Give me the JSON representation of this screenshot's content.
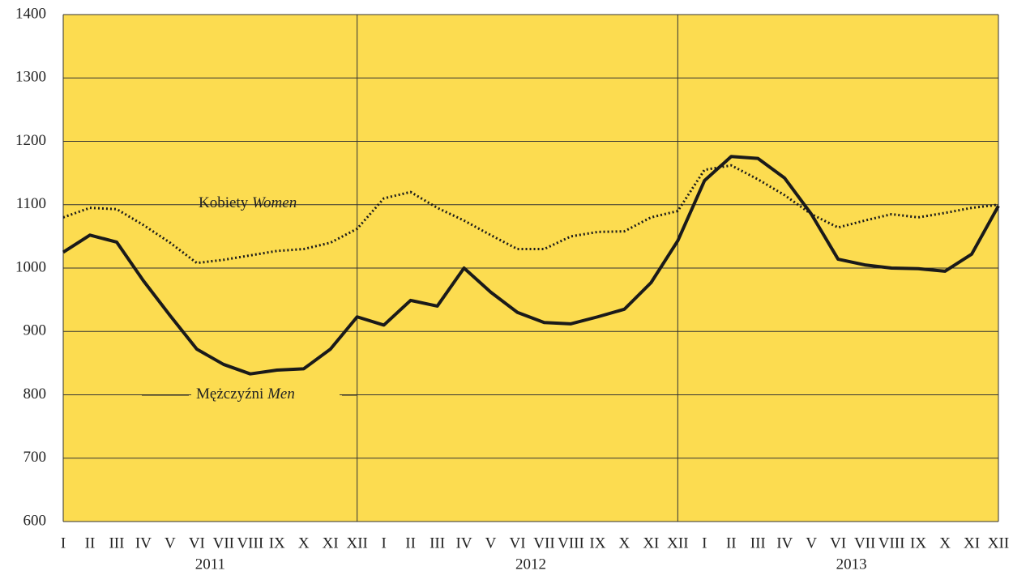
{
  "chart_data": {
    "type": "line",
    "categories": [
      "I",
      "II",
      "III",
      "IV",
      "V",
      "VI",
      "VII",
      "VIII",
      "IX",
      "X",
      "XI",
      "XII",
      "I",
      "II",
      "III",
      "IV",
      "V",
      "VI",
      "VII",
      "VIII",
      "IX",
      "X",
      "XI",
      "XII",
      "I",
      "II",
      "III",
      "IV",
      "V",
      "VI",
      "VII",
      "VIII",
      "IX",
      "X",
      "XI",
      "XII"
    ],
    "years": [
      "2011",
      "2012",
      "2013"
    ],
    "series": [
      {
        "name": "Kobiety",
        "name_en": "Women",
        "color": "#1a1a1a",
        "style": "dotted",
        "values": [
          1080,
          1095,
          1093,
          1068,
          1040,
          1008,
          1013,
          1020,
          1027,
          1030,
          1040,
          1062,
          1110,
          1120,
          1095,
          1075,
          1052,
          1030,
          1030,
          1050,
          1057,
          1058,
          1080,
          1090,
          1155,
          1162,
          1140,
          1115,
          1085,
          1064,
          1075,
          1085,
          1080,
          1087,
          1095,
          1100
        ]
      },
      {
        "name": "Mężczyźni",
        "name_en": "Men",
        "color": "#1a1a1a",
        "style": "solid",
        "values": [
          1025,
          1052,
          1041,
          980,
          925,
          872,
          848,
          833,
          839,
          841,
          872,
          923,
          910,
          949,
          940,
          1000,
          962,
          930,
          914,
          912,
          923,
          935,
          977,
          1043,
          1138,
          1176,
          1173,
          1142,
          1085,
          1014,
          1005,
          1000,
          999,
          995,
          1022,
          1098
        ]
      }
    ],
    "ylim": [
      600,
      1400
    ],
    "yticks": [
      600,
      700,
      800,
      900,
      1000,
      1100,
      1200,
      1300,
      1400
    ],
    "grid": true,
    "background": "#fcdc50"
  }
}
